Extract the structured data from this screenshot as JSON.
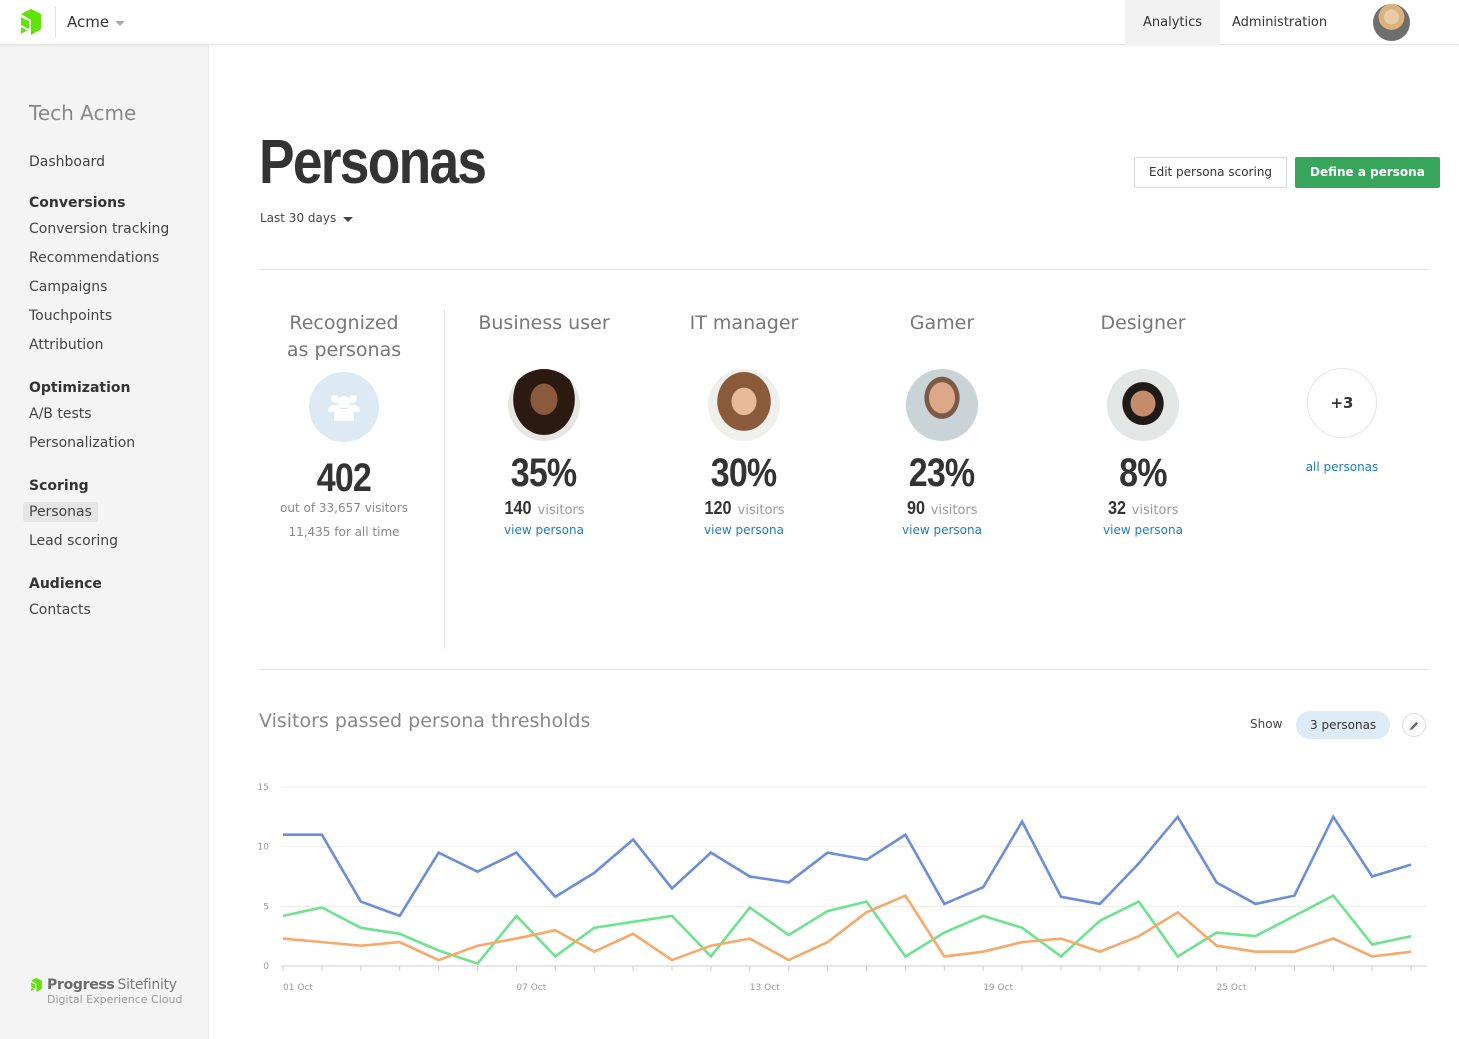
{
  "header": {
    "site_name": "Acme",
    "tabs": [
      {
        "label": "Analytics",
        "active": true
      },
      {
        "label": "Administration",
        "active": false
      }
    ]
  },
  "sidebar": {
    "site_title": "Tech Acme",
    "dashboard": "Dashboard",
    "groups": [
      {
        "heading": "Conversions",
        "items": [
          "Conversion tracking",
          "Recommendations",
          "Campaigns",
          "Touchpoints",
          "Attribution"
        ]
      },
      {
        "heading": "Optimization",
        "items": [
          "A/B tests",
          "Personalization"
        ]
      },
      {
        "heading": "Scoring",
        "items": [
          "Personas",
          "Lead scoring"
        ]
      },
      {
        "heading": "Audience",
        "items": [
          "Contacts"
        ]
      }
    ],
    "active_item": "Personas",
    "brand": {
      "name_1": "Progress",
      "name_2": "Sitefinity",
      "tagline": "Digital Experience Cloud"
    }
  },
  "page": {
    "title": "Personas",
    "date_range": "Last 30 days",
    "buttons": {
      "edit_scoring": "Edit persona scoring",
      "define": "Define a persona"
    }
  },
  "recognized": {
    "title_line1": "Recognized",
    "title_line2": "as personas",
    "count": "402",
    "out_of": "out of 33,657 visitors",
    "all_time": "11,435 for all time"
  },
  "personas": [
    {
      "name": "Business user",
      "percent": "35%",
      "visitors": "140",
      "visitors_label": "visitors",
      "link": "view persona"
    },
    {
      "name": "IT manager",
      "percent": "30%",
      "visitors": "120",
      "visitors_label": "visitors",
      "link": "view persona"
    },
    {
      "name": "Gamer",
      "percent": "23%",
      "visitors": "90",
      "visitors_label": "visitors",
      "link": "view persona"
    },
    {
      "name": "Designer",
      "percent": "8%",
      "visitors": "32",
      "visitors_label": "visitors",
      "link": "view persona"
    }
  ],
  "more_personas": {
    "count": "+3",
    "link": "all personas"
  },
  "chart_section": {
    "title": "Visitors passed persona thresholds",
    "show_label": "Show",
    "show_value": "3 personas"
  },
  "colors": {
    "accent_green": "#37a65b",
    "link_blue": "#1e7bc6",
    "series_blue": "#6b8ddc",
    "series_green": "#6ee38f",
    "series_orange": "#f8a96a"
  },
  "chart_data": {
    "type": "line",
    "title": "Visitors passed persona thresholds",
    "xlabel": "",
    "ylabel": "",
    "ylim": [
      0,
      15
    ],
    "yticks": [
      0,
      5,
      10,
      15
    ],
    "grid": true,
    "x": [
      "01 Oct",
      "02 Oct",
      "03 Oct",
      "04 Oct",
      "05 Oct",
      "06 Oct",
      "07 Oct",
      "08 Oct",
      "09 Oct",
      "10 Oct",
      "11 Oct",
      "12 Oct",
      "13 Oct",
      "14 Oct",
      "15 Oct",
      "16 Oct",
      "17 Oct",
      "18 Oct",
      "19 Oct",
      "20 Oct",
      "21 Oct",
      "22 Oct",
      "23 Oct",
      "24 Oct",
      "25 Oct",
      "26 Oct",
      "27 Oct",
      "28 Oct",
      "29 Oct",
      "30 Oct"
    ],
    "xtick_labels": [
      "01 Oct",
      "07 Oct",
      "13 Oct",
      "19 Oct",
      "25 Oct"
    ],
    "series": [
      {
        "name": "Series 1 (blue)",
        "color": "#6b8ddc",
        "values": [
          11,
          11,
          5.4,
          4.2,
          9.5,
          7.9,
          9.5,
          5.8,
          7.8,
          10.6,
          6.5,
          9.5,
          7.5,
          7,
          9.5,
          8.9,
          11,
          5.2,
          6.6,
          12.1,
          5.8,
          5.2,
          8.6,
          12.5,
          7,
          5.2,
          5.9,
          12.5,
          7.5,
          8.5
        ]
      },
      {
        "name": "Series 2 (green)",
        "color": "#6ee38f",
        "values": [
          4.2,
          4.9,
          3.2,
          2.7,
          1.3,
          0.2,
          4.2,
          0.8,
          3.2,
          3.7,
          4.2,
          0.8,
          4.9,
          2.6,
          4.6,
          5.4,
          0.8,
          2.8,
          4.2,
          3.2,
          0.8,
          3.8,
          5.4,
          0.8,
          2.8,
          2.5,
          4.2,
          5.9,
          1.8,
          2.5
        ]
      },
      {
        "name": "Series 3 (orange)",
        "color": "#f8a96a",
        "values": [
          2.3,
          2,
          1.7,
          2,
          0.5,
          1.7,
          2.3,
          3,
          1.2,
          2.7,
          0.5,
          1.7,
          2.3,
          0.5,
          2,
          4.5,
          5.9,
          0.8,
          1.2,
          2,
          2.3,
          1.2,
          2.5,
          4.5,
          1.7,
          1.2,
          1.2,
          2.3,
          0.8,
          1.2
        ]
      }
    ],
    "legend": "none"
  }
}
